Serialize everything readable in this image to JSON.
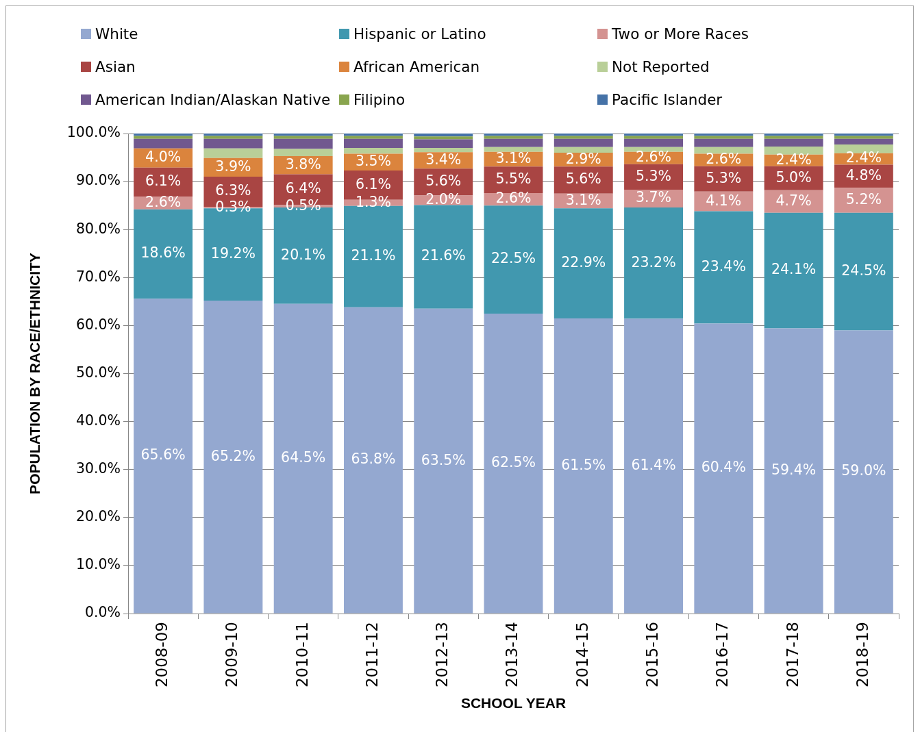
{
  "chart_data": {
    "type": "bar",
    "stacked": true,
    "xlabel": "SCHOOL YEAR",
    "ylabel": "POPULATION BY RACE/ETHNICITY",
    "categories": [
      "2008-09",
      "2009-10",
      "2010-11",
      "2011-12",
      "2012-13",
      "2013-14",
      "2014-15",
      "2015-16",
      "2016-17",
      "2017-18",
      "2018-19"
    ],
    "ylim": [
      0,
      100
    ],
    "yticks": [
      {
        "value": 0,
        "label": "0.0%"
      },
      {
        "value": 10,
        "label": "10.0%"
      },
      {
        "value": 20,
        "label": "20.0%"
      },
      {
        "value": 30,
        "label": "30.0%"
      },
      {
        "value": 40,
        "label": "40.0%"
      },
      {
        "value": 50,
        "label": "50.0%"
      },
      {
        "value": 60,
        "label": "60.0%"
      },
      {
        "value": 70,
        "label": "70.0%"
      },
      {
        "value": 80,
        "label": "80.0%"
      },
      {
        "value": 90,
        "label": "90.0%"
      },
      {
        "value": 100,
        "label": "100.0%"
      }
    ],
    "grid": "y",
    "legend": "top",
    "series": [
      {
        "name": "White",
        "color": "#94a8d0",
        "values": [
          65.6,
          65.2,
          64.5,
          63.8,
          63.5,
          62.5,
          61.5,
          61.4,
          60.4,
          59.4,
          59.0
        ],
        "value_labels": [
          "65.6%",
          "65.2%",
          "64.5%",
          "63.8%",
          "63.5%",
          "62.5%",
          "61.5%",
          "61.4%",
          "60.4%",
          "59.4%",
          "59.0%"
        ]
      },
      {
        "name": "Hispanic or Latino",
        "color": "#4198af",
        "values": [
          18.6,
          19.2,
          20.1,
          21.1,
          21.6,
          22.5,
          22.9,
          23.2,
          23.4,
          24.1,
          24.5
        ],
        "value_labels": [
          "18.6%",
          "19.2%",
          "20.1%",
          "21.1%",
          "21.6%",
          "22.5%",
          "22.9%",
          "23.2%",
          "23.4%",
          "24.1%",
          "24.5%"
        ]
      },
      {
        "name": "Two or More Races",
        "color": "#d49391",
        "values": [
          2.6,
          0.3,
          0.5,
          1.3,
          2.0,
          2.6,
          3.1,
          3.7,
          4.1,
          4.7,
          5.2
        ],
        "value_labels": [
          "2.6%",
          "0.3%",
          "0.5%",
          "1.3%",
          "2.0%",
          "2.6%",
          "3.1%",
          "3.7%",
          "4.1%",
          "4.7%",
          "5.2%"
        ]
      },
      {
        "name": "Asian",
        "color": "#a94543",
        "values": [
          6.1,
          6.3,
          6.4,
          6.1,
          5.6,
          5.5,
          5.6,
          5.3,
          5.3,
          5.0,
          4.8
        ],
        "value_labels": [
          "6.1%",
          "6.3%",
          "6.4%",
          "6.1%",
          "5.6%",
          "5.5%",
          "5.6%",
          "5.3%",
          "5.3%",
          "5.0%",
          "4.8%"
        ]
      },
      {
        "name": "African American",
        "color": "#db843d",
        "values": [
          4.0,
          3.9,
          3.8,
          3.5,
          3.4,
          3.1,
          2.9,
          2.6,
          2.6,
          2.4,
          2.4
        ],
        "value_labels": [
          "4.0%",
          "3.9%",
          "3.8%",
          "3.5%",
          "3.4%",
          "3.1%",
          "2.9%",
          "2.6%",
          "2.6%",
          "2.4%",
          "2.4%"
        ]
      },
      {
        "name": "Not Reported",
        "color": "#b9cf98",
        "values": [
          0.0,
          2.0,
          1.5,
          1.2,
          0.9,
          1.0,
          1.2,
          1.0,
          1.4,
          1.7,
          1.8
        ]
      },
      {
        "name": "American Indian/Alaskan Native",
        "color": "#71588f",
        "values": [
          2.0,
          2.0,
          2.1,
          1.9,
          1.8,
          1.7,
          1.7,
          1.7,
          1.7,
          1.6,
          1.2
        ]
      },
      {
        "name": "Filipino",
        "color": "#89a54e",
        "values": [
          0.6,
          0.6,
          0.6,
          0.6,
          0.6,
          0.6,
          0.6,
          0.6,
          0.6,
          0.6,
          0.6
        ]
      },
      {
        "name": "Pacific Islander",
        "color": "#4572a7",
        "values": [
          0.5,
          0.5,
          0.5,
          0.5,
          0.6,
          0.5,
          0.5,
          0.5,
          0.5,
          0.5,
          0.5
        ]
      }
    ]
  }
}
